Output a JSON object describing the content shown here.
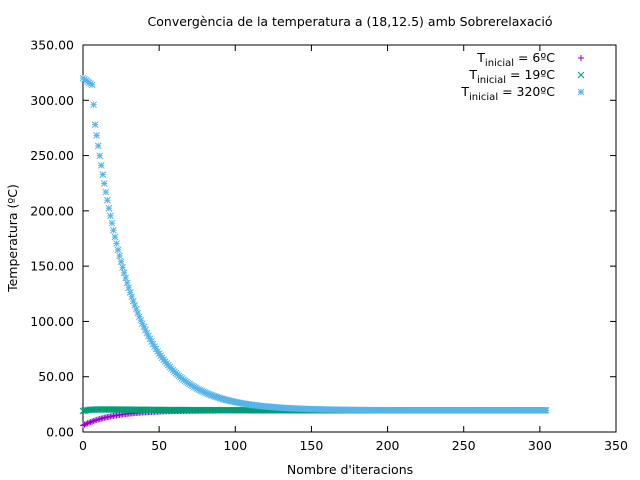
{
  "chart_data": {
    "type": "scatter",
    "title": "Convergència de la temperatura a (18,12.5) amb Sobrerelaxació",
    "xlabel": "Nombre d'iteracions",
    "ylabel": "Temperatura (ºC)",
    "xlim": [
      0,
      350
    ],
    "ylim": [
      0,
      350
    ],
    "x_ticks": [
      "0",
      "50",
      "100",
      "150",
      "200",
      "250",
      "300",
      "350"
    ],
    "y_ticks": [
      "0.00",
      "50.00",
      "100.00",
      "150.00",
      "200.00",
      "250.00",
      "300.00",
      "350.00"
    ],
    "grid": false,
    "legend_position": "top-right",
    "iterations": 304,
    "series": [
      {
        "name": "T_inicial = 6ºC",
        "legend_main": "T",
        "legend_sub": "inicial",
        "legend_rest": " = 6ºC",
        "marker": "+",
        "color": "#9400d3",
        "start": 6,
        "final": 19.6,
        "tau": 20,
        "osc_amp": 0,
        "osc_decay": 1,
        "sample": [
          [
            0,
            6
          ],
          [
            10,
            11.3
          ],
          [
            20,
            14.6
          ],
          [
            50,
            18.8
          ],
          [
            100,
            19.5
          ],
          [
            150,
            19.6
          ],
          [
            300,
            19.6
          ]
        ]
      },
      {
        "name": "T_inicial = 19ºC",
        "legend_main": "T",
        "legend_sub": "inicial",
        "legend_rest": " = 19ºC",
        "marker": "x",
        "color": "#009e73",
        "start": 19,
        "final": 19.6,
        "tau": 15,
        "osc_amp": 1.5,
        "osc_decay": 40,
        "sample": [
          [
            0,
            19
          ],
          [
            10,
            20.4
          ],
          [
            20,
            20.7
          ],
          [
            50,
            20.3
          ],
          [
            100,
            19.8
          ],
          [
            150,
            19.6
          ],
          [
            300,
            19.6
          ]
        ]
      },
      {
        "name": "T_inicial = 320ºC",
        "legend_main": "T",
        "legend_sub": "inicial",
        "legend_rest": " = 320ºC",
        "marker": "*",
        "color": "#56b4e9",
        "start": 320,
        "final": 19.6,
        "tau": 26,
        "plateau": 6,
        "osc_amp": 0,
        "osc_decay": 1,
        "sample": [
          [
            0,
            320
          ],
          [
            6,
            314
          ],
          [
            10,
            240
          ],
          [
            20,
            148
          ],
          [
            50,
            54
          ],
          [
            100,
            24
          ],
          [
            150,
            20
          ],
          [
            300,
            19.6
          ]
        ]
      }
    ]
  }
}
